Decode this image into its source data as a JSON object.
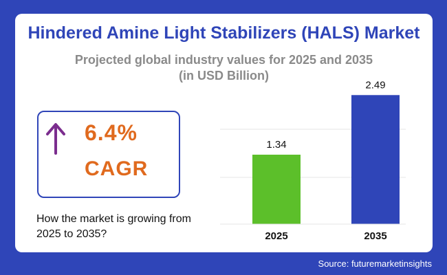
{
  "title": "Hindered Amine Light Stabilizers (HALS) Market",
  "subtitle_line1": "Projected global industry values for 2025 and 2035",
  "subtitle_line2": "(in USD Billion)",
  "cagr": {
    "value": "6.4%",
    "label": "CAGR",
    "icon": "arrow-up-icon",
    "arrow_color": "#7b2d8e",
    "text_color": "#e06a1e"
  },
  "question": "How the market is growing from 2025 to 2035?",
  "source": "Source: futuremarketinsights",
  "colors": {
    "background": "#2f45b8",
    "title": "#2f45b8"
  },
  "chart_data": {
    "type": "bar",
    "categories": [
      "2025",
      "2035"
    ],
    "values": [
      1.34,
      2.49
    ],
    "value_labels": [
      "1.34",
      "2.49"
    ],
    "colors": [
      "#5cbf2a",
      "#2f45b8"
    ],
    "ylim": [
      0,
      2.6
    ],
    "grid": true,
    "xlabel": "",
    "ylabel": ""
  }
}
